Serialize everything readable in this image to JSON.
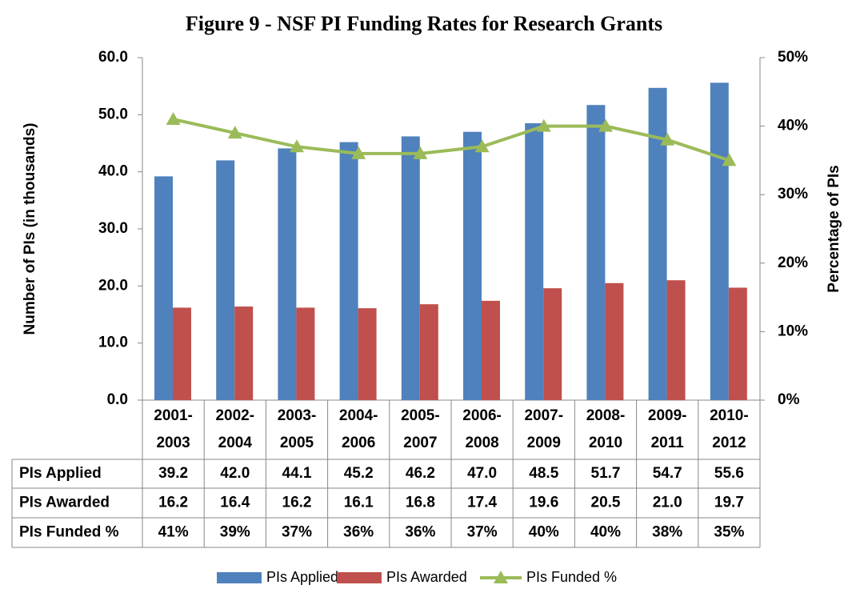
{
  "chart_data": {
    "type": "bar",
    "title": "Figure 9 - NSF PI Funding Rates for Research Grants",
    "y_label": "Number of PIs (in thousands)",
    "y2_label": "Percentage of PIs",
    "categories": [
      "2001-2003",
      "2002-2004",
      "2003-2005",
      "2004-2006",
      "2005-2007",
      "2006-2008",
      "2007-2009",
      "2008-2010",
      "2009-2011",
      "2010-2012"
    ],
    "series": [
      {
        "name": "PIs Applied",
        "type": "bar",
        "color": "#4f81bd",
        "values": [
          39.2,
          42.0,
          44.1,
          45.2,
          46.2,
          47.0,
          48.5,
          51.7,
          54.7,
          55.6
        ],
        "value_labels": [
          "39.2",
          "42.0",
          "44.1",
          "45.2",
          "46.2",
          "47.0",
          "48.5",
          "51.7",
          "54.7",
          "55.6"
        ]
      },
      {
        "name": "PIs Awarded",
        "type": "bar",
        "color": "#c0504d",
        "values": [
          16.2,
          16.4,
          16.2,
          16.1,
          16.8,
          17.4,
          19.6,
          20.5,
          21.0,
          19.7
        ],
        "value_labels": [
          "16.2",
          "16.4",
          "16.2",
          "16.1",
          "16.8",
          "17.4",
          "19.6",
          "20.5",
          "21.0",
          "19.7"
        ]
      },
      {
        "name": "PIs Funded %",
        "type": "line",
        "axis": "y2",
        "color": "#9bbb59",
        "values": [
          41,
          39,
          37,
          36,
          36,
          37,
          40,
          40,
          38,
          35
        ],
        "value_labels": [
          "41%",
          "39%",
          "37%",
          "36%",
          "36%",
          "37%",
          "40%",
          "40%",
          "38%",
          "35%"
        ]
      }
    ],
    "ylim": [
      0,
      60
    ],
    "yticks": [
      {
        "value": 0,
        "label": "0.0"
      },
      {
        "value": 10,
        "label": "10.0"
      },
      {
        "value": 20,
        "label": "20.0"
      },
      {
        "value": 30,
        "label": "30.0"
      },
      {
        "value": 40,
        "label": "40.0"
      },
      {
        "value": 50,
        "label": "50.0"
      },
      {
        "value": 60,
        "label": "60.0"
      }
    ],
    "y2lim": [
      0,
      50
    ],
    "y2ticks": [
      {
        "value": 0,
        "label": "0%"
      },
      {
        "value": 10,
        "label": "10%"
      },
      {
        "value": 20,
        "label": "20%"
      },
      {
        "value": 30,
        "label": "30%"
      },
      {
        "value": 40,
        "label": "40%"
      },
      {
        "value": 50,
        "label": "50%"
      }
    ],
    "grid": false,
    "legend": "bottom"
  }
}
